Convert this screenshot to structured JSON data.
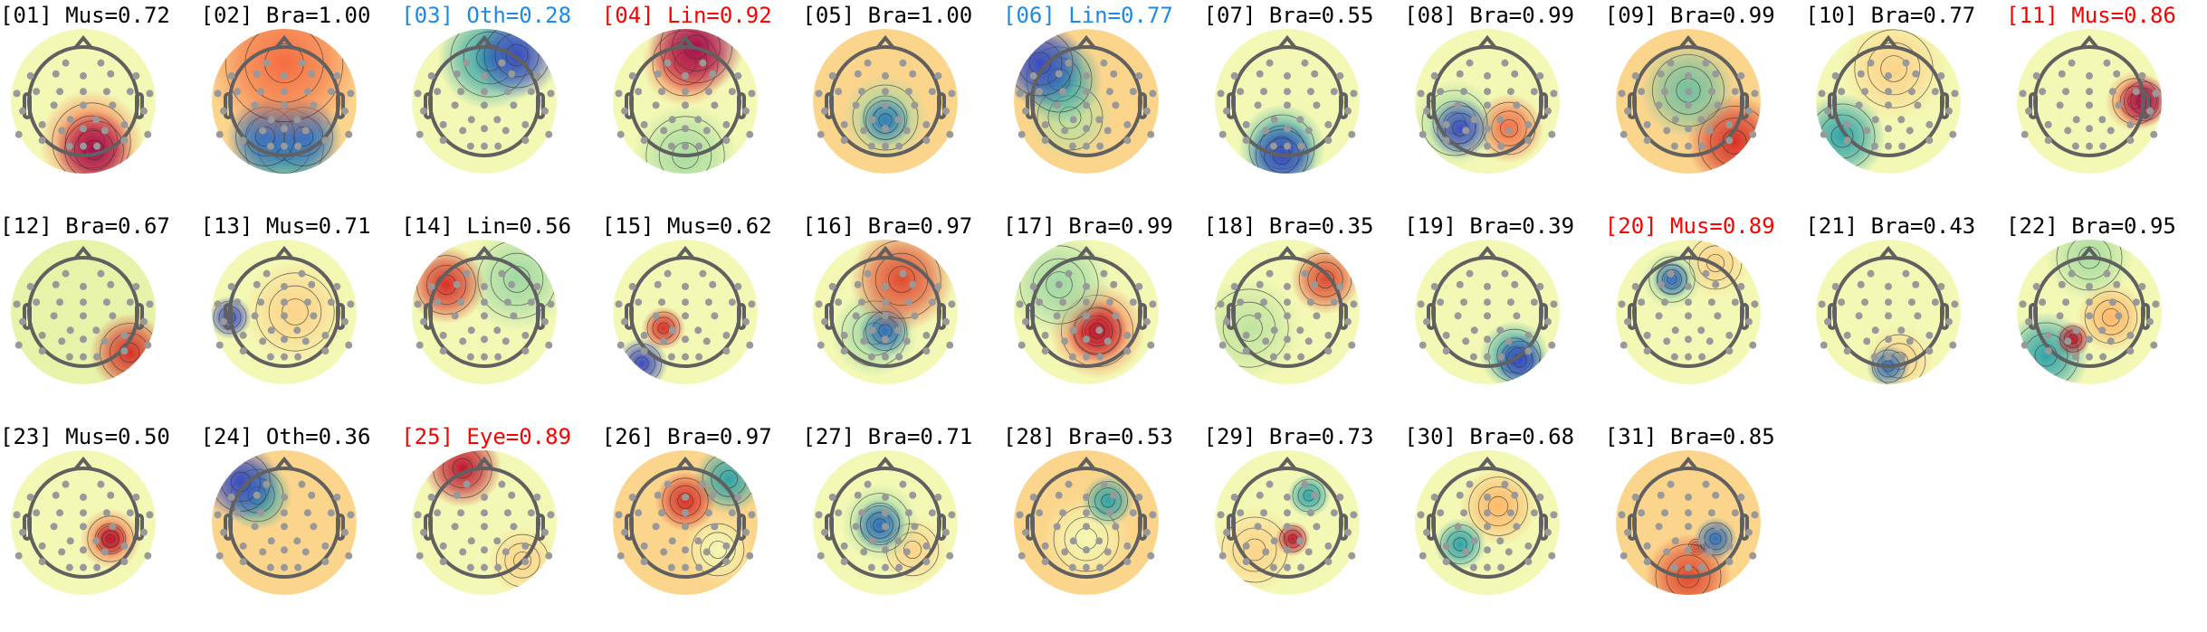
{
  "chart_data": {
    "type": "heatmap",
    "description_kind": "topomap-grid",
    "colors": {
      "normal": "#000000",
      "flag_red": "#ff0000",
      "flag_blue": "#1e88e5"
    },
    "colormap": [
      "#3b4cc0",
      "#2fa3a8",
      "#9fd8a4",
      "#f5f8b0",
      "#fdd38a",
      "#f46d43",
      "#a50f4f"
    ],
    "components": [
      {
        "label": "[01] Mus=0.72",
        "flag": "normal"
      },
      {
        "label": "[02] Bra=1.00",
        "flag": "normal"
      },
      {
        "label": "[03] Oth=0.28",
        "flag": "flag_blue"
      },
      {
        "label": "[04] Lin=0.92",
        "flag": "flag_red"
      },
      {
        "label": "[05] Bra=1.00",
        "flag": "normal"
      },
      {
        "label": "[06] Lin=0.77",
        "flag": "flag_blue"
      },
      {
        "label": "[07] Bra=0.55",
        "flag": "normal"
      },
      {
        "label": "[08] Bra=0.99",
        "flag": "normal"
      },
      {
        "label": "[09] Bra=0.99",
        "flag": "normal"
      },
      {
        "label": "[10] Bra=0.77",
        "flag": "normal"
      },
      {
        "label": "[11] Mus=0.86",
        "flag": "flag_red"
      },
      {
        "label": "[12] Bra=0.67",
        "flag": "normal"
      },
      {
        "label": "[13] Mus=0.71",
        "flag": "normal"
      },
      {
        "label": "[14] Lin=0.56",
        "flag": "normal"
      },
      {
        "label": "[15] Mus=0.62",
        "flag": "normal"
      },
      {
        "label": "[16] Bra=0.97",
        "flag": "normal"
      },
      {
        "label": "[17] Bra=0.99",
        "flag": "normal"
      },
      {
        "label": "[18] Bra=0.35",
        "flag": "normal"
      },
      {
        "label": "[19] Bra=0.39",
        "flag": "normal"
      },
      {
        "label": "[20] Mus=0.89",
        "flag": "flag_red"
      },
      {
        "label": "[21] Bra=0.43",
        "flag": "normal"
      },
      {
        "label": "[22] Bra=0.95",
        "flag": "normal"
      },
      {
        "label": "[23] Mus=0.50",
        "flag": "normal"
      },
      {
        "label": "[24] Oth=0.36",
        "flag": "normal"
      },
      {
        "label": "[25] Eye=0.89",
        "flag": "flag_red"
      },
      {
        "label": "[26] Bra=0.97",
        "flag": "normal"
      },
      {
        "label": "[27] Bra=0.71",
        "flag": "normal"
      },
      {
        "label": "[28] Bra=0.53",
        "flag": "normal"
      },
      {
        "label": "[29] Bra=0.73",
        "flag": "normal"
      },
      {
        "label": "[30] Bra=0.68",
        "flag": "normal"
      },
      {
        "label": "[31] Bra=0.85",
        "flag": "normal"
      }
    ]
  }
}
